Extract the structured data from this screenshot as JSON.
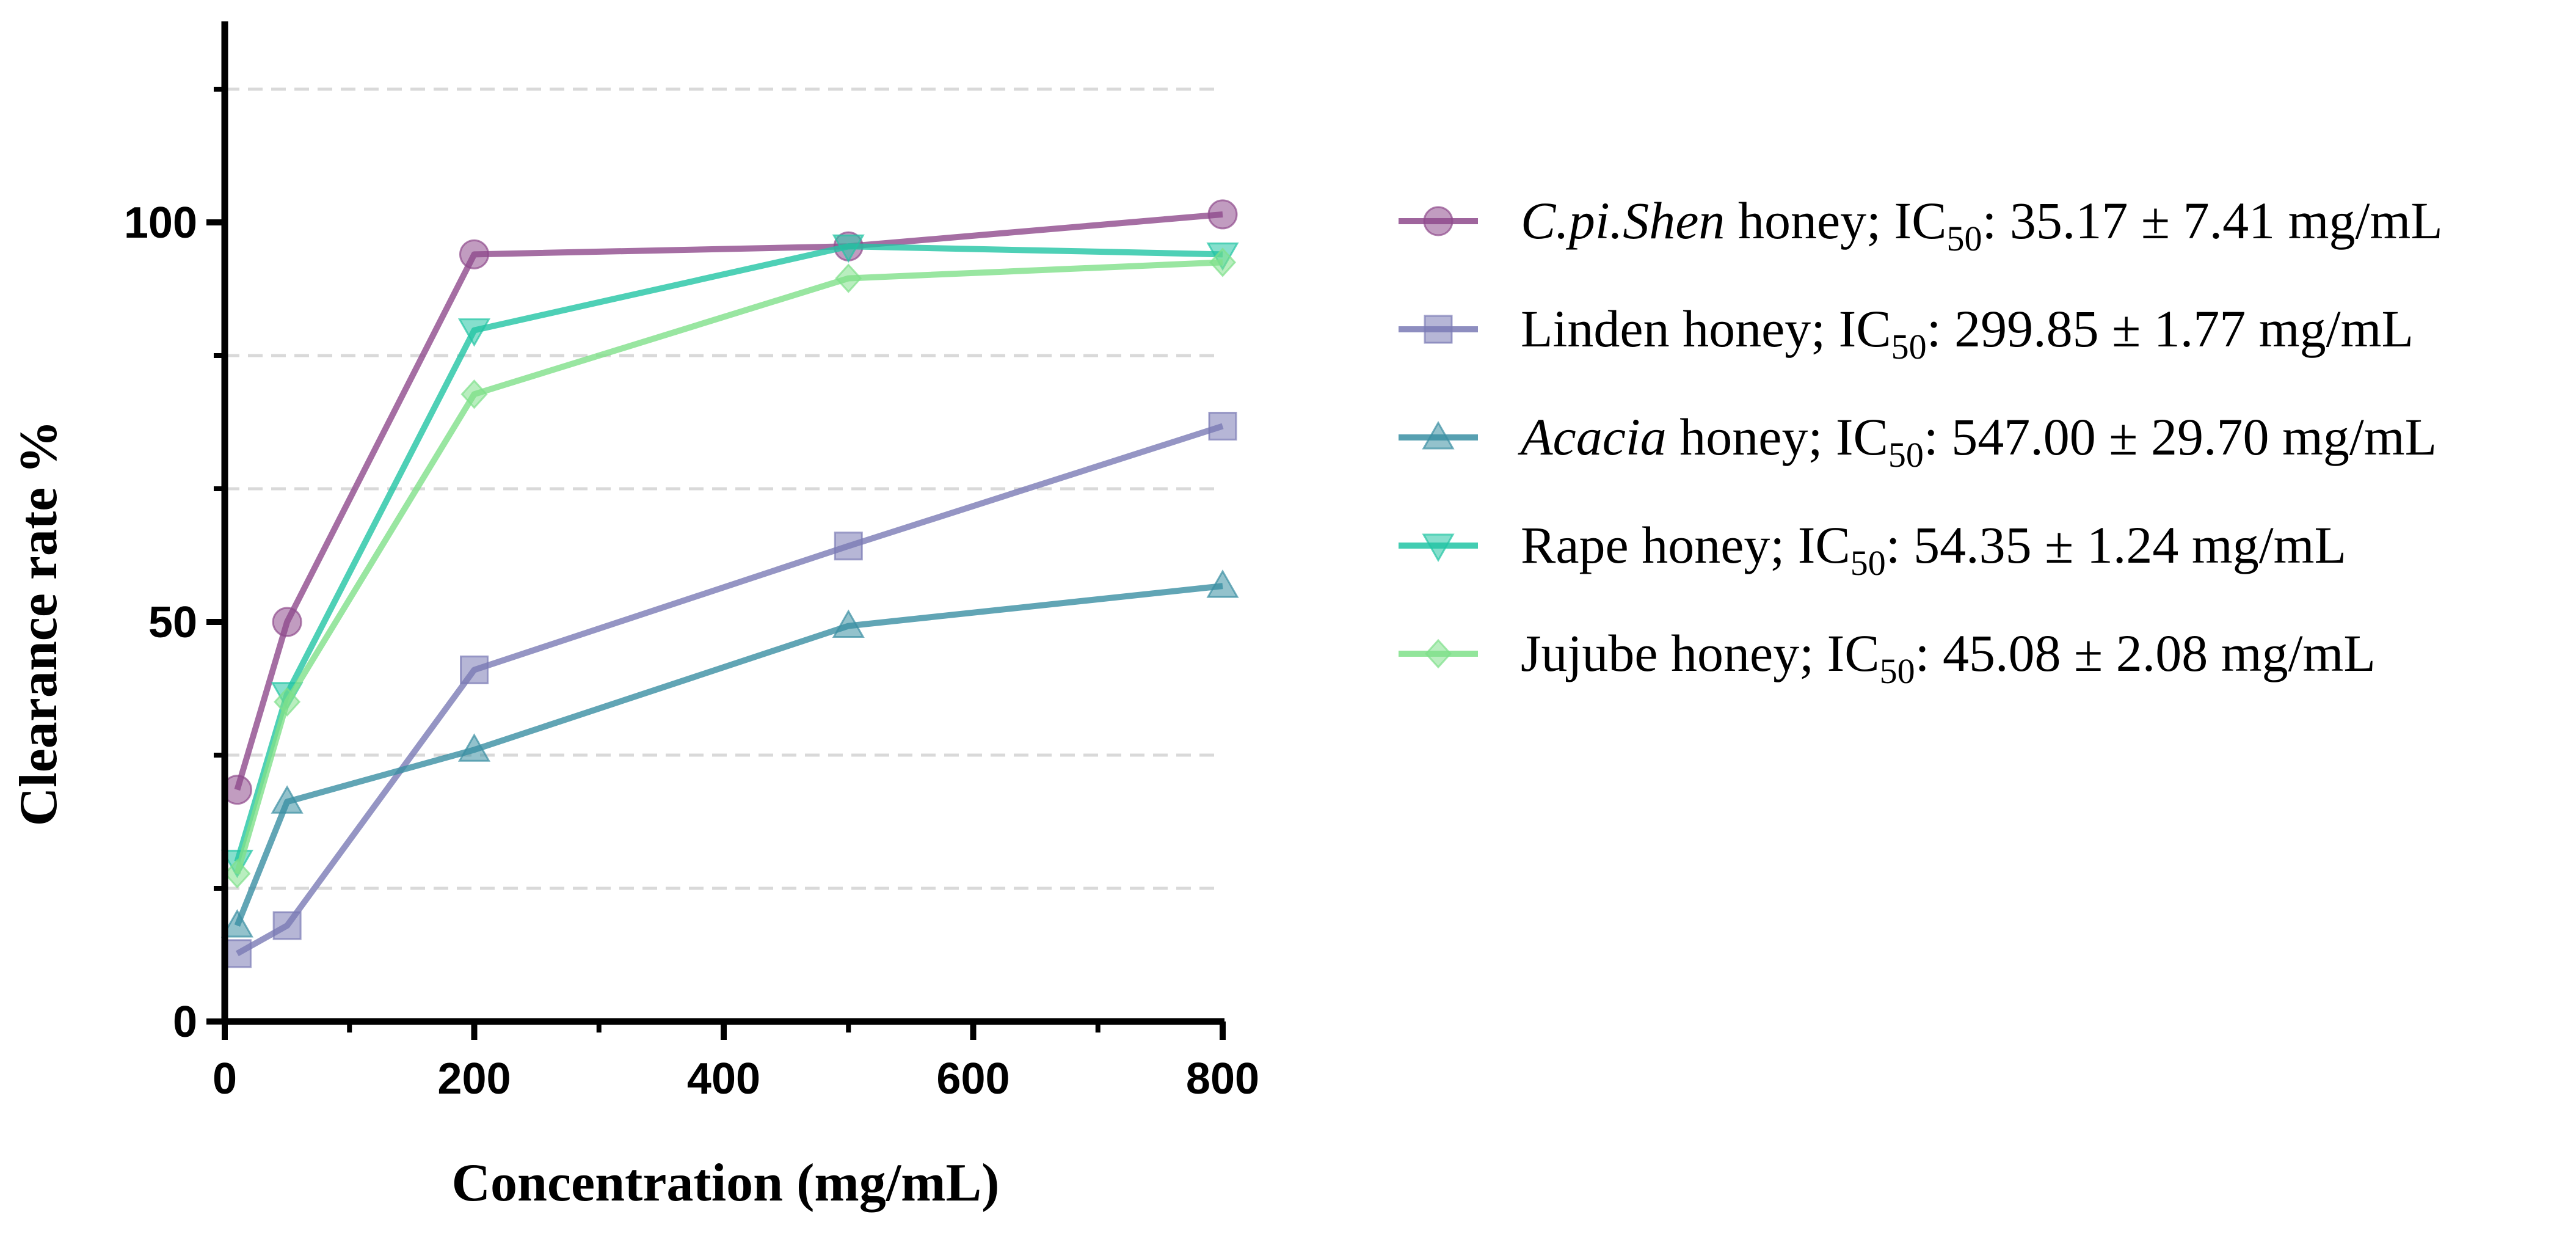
{
  "chart_data": {
    "type": "line",
    "title": "",
    "xlabel": "Concentration (mg/mL)",
    "ylabel": "Clearance rate %",
    "xlim": [
      0,
      800
    ],
    "ylim": [
      0,
      125
    ],
    "xticks": [
      "0",
      "200",
      "400",
      "600",
      "800"
    ],
    "yticks": [
      "0",
      "50",
      "100"
    ],
    "grid": "dashed horizontal lines",
    "legend_position": "right",
    "x": [
      10,
      50,
      200,
      500,
      800
    ],
    "series": [
      {
        "name": "C.pi.Shen honey",
        "name_parts": [
          {
            "t": "C.pi.Shen",
            "italic": true
          },
          {
            "t": " honey; IC"
          },
          {
            "t": "50",
            "sub": true
          },
          {
            "t": ": 35.17 ± 7.41 mg/mL"
          }
        ],
        "values": [
          29,
          50,
          96,
          97,
          101
        ],
        "color": "#8e4a8c",
        "marker": "circle"
      },
      {
        "name": "Linden honey",
        "name_parts": [
          {
            "t": "Linden honey; IC"
          },
          {
            "t": "50",
            "sub": true
          },
          {
            "t": ": 299.85 ± 1.77 mg/mL"
          }
        ],
        "values": [
          8.5,
          12,
          44,
          59.5,
          74.5
        ],
        "color": "#7a7ab5",
        "marker": "square"
      },
      {
        "name": "Acacia honey",
        "name_parts": [
          {
            "t": "Acacia",
            "italic": true
          },
          {
            "t": " honey; IC"
          },
          {
            "t": "50",
            "sub": true
          },
          {
            "t": ": 547.00 ± 29.70 mg/mL"
          }
        ],
        "values": [
          12,
          27.5,
          34,
          49.5,
          54.5
        ],
        "color": "#3a8fa3",
        "marker": "triangle-up"
      },
      {
        "name": "Rape honey",
        "name_parts": [
          {
            "t": "Rape honey; IC"
          },
          {
            "t": "50",
            "sub": true
          },
          {
            "t": ": 54.35 ± 1.24 mg/mL"
          }
        ],
        "values": [
          20,
          41,
          86.5,
          97,
          96
        ],
        "color": "#22c4a4",
        "marker": "triangle-down"
      },
      {
        "name": "Jujube honey",
        "name_parts": [
          {
            "t": "Jujube honey; IC"
          },
          {
            "t": "50",
            "sub": true
          },
          {
            "t": ": 45.08 ± 2.08 mg/mL"
          }
        ],
        "values": [
          18.5,
          40,
          78.5,
          93,
          95
        ],
        "color": "#7fe08a",
        "marker": "diamond"
      }
    ]
  }
}
